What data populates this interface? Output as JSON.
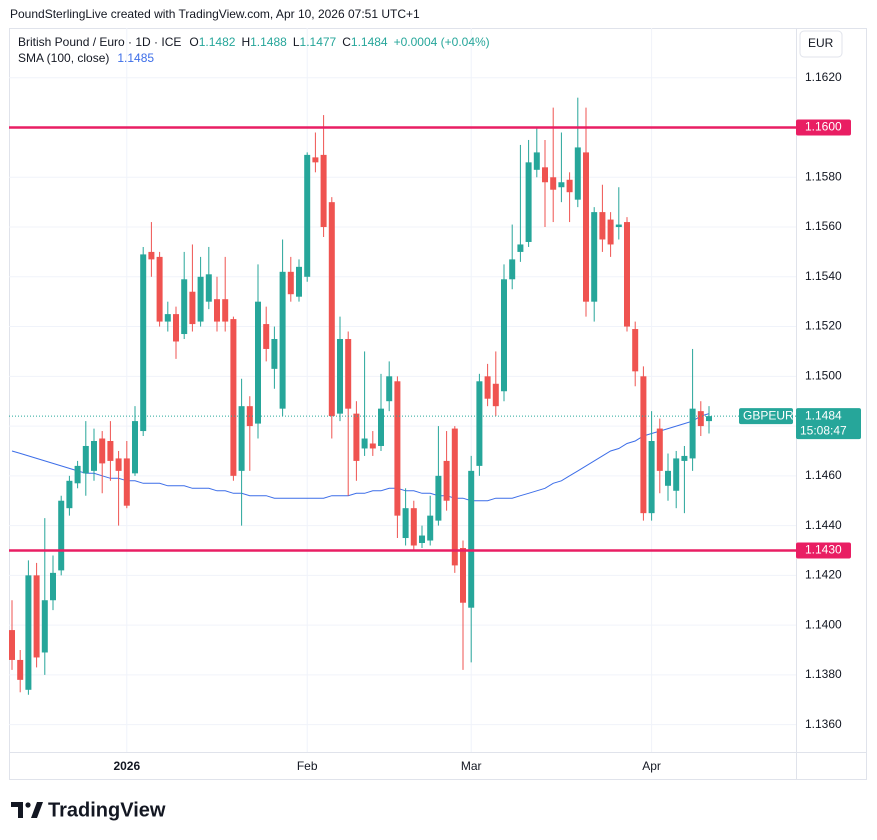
{
  "attribution": "PoundSterlingLive created with TradingView.com, Apr 10, 2026 07:51 UTC+1",
  "logo": "TradingView",
  "chart_data": {
    "type": "candlestick",
    "title": "British Pound / Euro · 1D · ICE",
    "ohlc_labels": [
      "O",
      "H",
      "L",
      "C"
    ],
    "change": "+0.0004 (+0.04%)",
    "currency": "EUR",
    "symbol": "GBPEUR",
    "countdown": "15:08:47",
    "up_color": "#26a69a",
    "down_color": "#ef5350",
    "categories": [
      null,
      null,
      null,
      null,
      null,
      null,
      null,
      null,
      null,
      null,
      null,
      null,
      null,
      null,
      "2026",
      null,
      null,
      null,
      null,
      null,
      null,
      null,
      null,
      null,
      null,
      null,
      null,
      null,
      null,
      null,
      null,
      null,
      null,
      null,
      null,
      null,
      "Feb",
      null,
      null,
      null,
      null,
      null,
      null,
      null,
      null,
      null,
      null,
      null,
      null,
      null,
      null,
      null,
      null,
      null,
      null,
      null,
      "Mar",
      null,
      null,
      null,
      null,
      null,
      null,
      null,
      null,
      null,
      null,
      null,
      null,
      null,
      null,
      null,
      null,
      null,
      null,
      null,
      null,
      null,
      "Apr",
      null,
      null,
      null,
      null,
      null,
      null,
      null
    ],
    "open": [
      1.1398,
      1.1386,
      1.1374,
      1.142,
      1.1389,
      1.141,
      1.1422,
      1.1447,
      1.1457,
      1.1461,
      1.1462,
      1.1475,
      1.1474,
      1.1467,
      1.1467,
      1.1461,
      1.1478,
      1.155,
      1.1548,
      1.1522,
      1.1525,
      1.1517,
      1.1534,
      1.1522,
      1.153,
      1.1531,
      1.1531,
      1.1523,
      1.1462,
      1.1488,
      1.1481,
      1.1521,
      1.1503,
      1.1487,
      1.1542,
      1.1532,
      1.154,
      1.1588,
      1.1589,
      1.157,
      1.1485,
      1.1515,
      1.1485,
      1.1471,
      1.1473,
      1.1472,
      1.149,
      1.1498,
      1.1435,
      1.1447,
      1.1433,
      1.1434,
      1.1442,
      1.1466,
      1.1479,
      1.1431,
      1.1407,
      1.1464,
      1.15,
      1.1497,
      1.1494,
      1.1539,
      1.155,
      1.1554,
      1.1583,
      1.1584,
      1.158,
      1.1576,
      1.1579,
      1.1571,
      1.159,
      1.153,
      1.1566,
      1.1563,
      1.156,
      1.1562,
      1.1519,
      1.15,
      1.1445,
      1.1479,
      1.1456,
      1.1454,
      1.1466,
      1.1467,
      1.1486,
      1.1482
    ],
    "high": [
      1.141,
      1.139,
      1.1426,
      1.1425,
      1.1443,
      1.1428,
      1.1452,
      1.146,
      1.1466,
      1.1482,
      1.1479,
      1.1478,
      1.1482,
      1.147,
      1.1474,
      1.1488,
      1.1552,
      1.1562,
      1.155,
      1.153,
      1.1528,
      1.155,
      1.1553,
      1.1548,
      1.1552,
      1.154,
      1.1548,
      1.1524,
      1.1499,
      1.1492,
      1.1545,
      1.1528,
      1.152,
      1.1555,
      1.1548,
      1.1547,
      1.159,
      1.1598,
      1.1605,
      1.1572,
      1.1524,
      1.1518,
      1.149,
      1.151,
      1.1478,
      1.1501,
      1.1506,
      1.15,
      1.1455,
      1.145,
      1.144,
      1.1452,
      1.148,
      1.1478,
      1.148,
      1.1434,
      1.1468,
      1.1501,
      1.1505,
      1.151,
      1.1545,
      1.1561,
      1.1593,
      1.1595,
      1.16,
      1.1595,
      1.1608,
      1.1598,
      1.1582,
      1.1612,
      1.1608,
      1.1568,
      1.1577,
      1.1566,
      1.1576,
      1.1564,
      1.1522,
      1.1504,
      1.1486,
      1.1483,
      1.1469,
      1.147,
      1.1472,
      1.1511,
      1.149,
      1.1488
    ],
    "low": [
      1.1382,
      1.1373,
      1.1372,
      1.1383,
      1.138,
      1.1406,
      1.142,
      1.1444,
      1.1455,
      1.1452,
      1.1458,
      1.1453,
      1.1458,
      1.144,
      1.1447,
      1.146,
      1.1476,
      1.154,
      1.152,
      1.1518,
      1.1507,
      1.1515,
      1.1518,
      1.152,
      1.1527,
      1.1518,
      1.1518,
      1.1458,
      1.144,
      1.1462,
      1.1475,
      1.1506,
      1.1495,
      1.1484,
      1.153,
      1.153,
      1.1538,
      1.1582,
      1.1556,
      1.1475,
      1.1482,
      1.1452,
      1.1458,
      1.1468,
      1.1468,
      1.147,
      1.1486,
      1.1435,
      1.1432,
      1.143,
      1.1431,
      1.1432,
      1.144,
      1.1446,
      1.1421,
      1.1382,
      1.1385,
      1.146,
      1.1488,
      1.1484,
      1.149,
      1.1535,
      1.1546,
      1.1552,
      1.158,
      1.156,
      1.1562,
      1.157,
      1.1562,
      1.1568,
      1.1524,
      1.1522,
      1.155,
      1.1548,
      1.1555,
      1.1518,
      1.1496,
      1.1442,
      1.1442,
      1.1453,
      1.145,
      1.1447,
      1.1445,
      1.1462,
      1.1476,
      1.1477
    ],
    "close": [
      1.1386,
      1.1378,
      1.142,
      1.1387,
      1.141,
      1.1421,
      1.145,
      1.1458,
      1.1464,
      1.1472,
      1.1474,
      1.1465,
      1.1466,
      1.1462,
      1.1448,
      1.1482,
      1.1549,
      1.1547,
      1.1522,
      1.1525,
      1.1514,
      1.1539,
      1.1521,
      1.154,
      1.1541,
      1.1522,
      1.1522,
      1.146,
      1.1488,
      1.148,
      1.153,
      1.1511,
      1.1515,
      1.1542,
      1.1533,
      1.1544,
      1.1589,
      1.1586,
      1.156,
      1.1484,
      1.1515,
      1.1487,
      1.1466,
      1.1475,
      1.1471,
      1.1487,
      1.15,
      1.1444,
      1.1447,
      1.1432,
      1.1436,
      1.1444,
      1.146,
      1.145,
      1.1424,
      1.1409,
      1.1462,
      1.1498,
      1.1491,
      1.1488,
      1.1539,
      1.1547,
      1.1553,
      1.1586,
      1.159,
      1.1578,
      1.1575,
      1.1578,
      1.1574,
      1.1592,
      1.153,
      1.1566,
      1.1555,
      1.1553,
      1.1561,
      1.152,
      1.1502,
      1.1445,
      1.1474,
      1.1462,
      1.1462,
      1.1467,
      1.1468,
      1.1487,
      1.148,
      1.1484
    ],
    "sma": {
      "name": "SMA (100, close)",
      "color": "#3d6ee8",
      "values": [
        1.147,
        1.1469,
        1.1468,
        1.1467,
        1.1466,
        1.1465,
        1.1464,
        1.1463,
        1.1462,
        1.1461,
        1.1461,
        1.146,
        1.1459,
        1.1459,
        1.1458,
        1.1458,
        1.1457,
        1.1457,
        1.1457,
        1.1456,
        1.1456,
        1.1456,
        1.1455,
        1.1455,
        1.1455,
        1.1454,
        1.1454,
        1.1453,
        1.1453,
        1.1452,
        1.1452,
        1.1452,
        1.1451,
        1.1451,
        1.1451,
        1.1451,
        1.1451,
        1.1451,
        1.1451,
        1.1452,
        1.1452,
        1.1452,
        1.1453,
        1.1453,
        1.1454,
        1.1454,
        1.1455,
        1.1455,
        1.1454,
        1.1454,
        1.1453,
        1.1453,
        1.1452,
        1.1452,
        1.1451,
        1.1451,
        1.145,
        1.145,
        1.145,
        1.1451,
        1.1451,
        1.1451,
        1.1452,
        1.1453,
        1.1454,
        1.1455,
        1.1457,
        1.1458,
        1.146,
        1.1462,
        1.1464,
        1.1466,
        1.1468,
        1.147,
        1.1471,
        1.1473,
        1.1474,
        1.1476,
        1.1477,
        1.1478,
        1.1479,
        1.148,
        1.1481,
        1.1482,
        1.1484,
        1.1485
      ]
    },
    "hlines": [
      {
        "value": 1.16,
        "label": "1.1600"
      },
      {
        "value": 1.143,
        "label": "1.1430"
      }
    ],
    "hline_color": "#e91e63",
    "ylim": [
      1.1349,
      1.164
    ],
    "yticks": [
      {
        "value": 1.136,
        "label": "1.1360"
      },
      {
        "value": 1.138,
        "label": "1.1380"
      },
      {
        "value": 1.14,
        "label": "1.1400"
      },
      {
        "value": 1.142,
        "label": "1.1420"
      },
      {
        "value": 1.144,
        "label": "1.1440"
      },
      {
        "value": 1.146,
        "label": "1.1460"
      },
      {
        "value": 1.148,
        "label": "1.1480"
      },
      {
        "value": 1.15,
        "label": "1.1500"
      },
      {
        "value": 1.152,
        "label": "1.1520"
      },
      {
        "value": 1.154,
        "label": "1.1540"
      },
      {
        "value": 1.156,
        "label": "1.1560"
      },
      {
        "value": 1.158,
        "label": "1.1580"
      },
      {
        "value": 1.162,
        "label": "1.1620"
      }
    ],
    "grid": true
  }
}
